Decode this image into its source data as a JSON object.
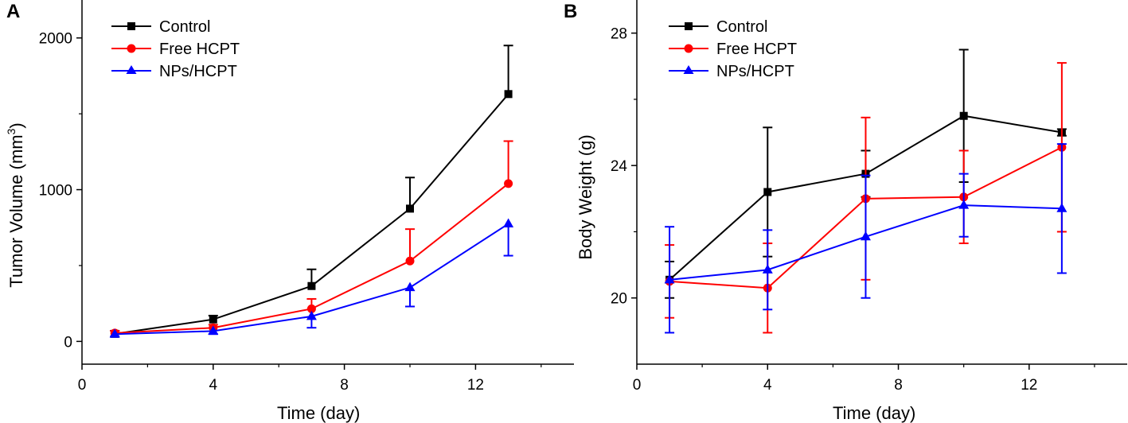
{
  "chart_data": [
    {
      "type": "line",
      "panel_label": "A",
      "xlabel": "Time (day)",
      "ylabel": "Tumor Volume (mm3)",
      "ylabel_main": "Tumor Volume (mm",
      "ylabel_sup": "3",
      "ylabel_close": ")",
      "xlim": [
        0,
        15
      ],
      "ylim": [
        -150,
        2250
      ],
      "xticks": [
        0,
        4,
        8,
        12
      ],
      "yticks": [
        0,
        1000,
        2000
      ],
      "legend_position": "top-left",
      "x": [
        1,
        4,
        7,
        10,
        13
      ],
      "series": [
        {
          "name": "Control",
          "color": "#000000",
          "marker": "square",
          "values": [
            50,
            145,
            365,
            875,
            1630
          ],
          "errors": [
            20,
            25,
            110,
            205,
            320
          ],
          "error_dir": "up"
        },
        {
          "name": "Free HCPT",
          "color": "#ff0000",
          "marker": "circle",
          "values": [
            55,
            90,
            215,
            530,
            1040
          ],
          "errors": [
            15,
            20,
            65,
            210,
            280
          ],
          "error_dir": "up"
        },
        {
          "name": "NPs/HCPT",
          "color": "#0000ff",
          "marker": "triangle",
          "values": [
            48,
            68,
            165,
            355,
            775
          ],
          "errors": [
            15,
            20,
            75,
            125,
            210
          ],
          "error_dir": "down"
        }
      ]
    },
    {
      "type": "line",
      "panel_label": "B",
      "xlabel": "Time (day)",
      "ylabel": "Body Weight (g)",
      "xlim": [
        0,
        15
      ],
      "ylim": [
        18,
        29
      ],
      "xticks": [
        0,
        4,
        8,
        12
      ],
      "yticks": [
        20,
        24,
        28
      ],
      "legend_position": "top-left",
      "x": [
        1,
        4,
        7,
        10,
        13
      ],
      "series": [
        {
          "name": "Control",
          "color": "#000000",
          "marker": "square",
          "values": [
            20.55,
            23.2,
            23.75,
            25.5,
            25.0
          ],
          "errors": [
            0.55,
            1.95,
            0.7,
            2.0,
            0.1
          ],
          "error_dir": "both"
        },
        {
          "name": "Free HCPT",
          "color": "#ff0000",
          "marker": "circle",
          "values": [
            20.5,
            20.3,
            23.0,
            23.05,
            24.55
          ],
          "errors": [
            1.1,
            1.35,
            2.45,
            1.4,
            2.55
          ],
          "error_dir": "both"
        },
        {
          "name": "NPs/HCPT",
          "color": "#0000ff",
          "marker": "triangle",
          "values": [
            20.55,
            20.85,
            21.85,
            22.8,
            22.7
          ],
          "errors": [
            1.6,
            1.2,
            1.85,
            0.95,
            1.95
          ],
          "error_dir": "both"
        }
      ]
    }
  ]
}
